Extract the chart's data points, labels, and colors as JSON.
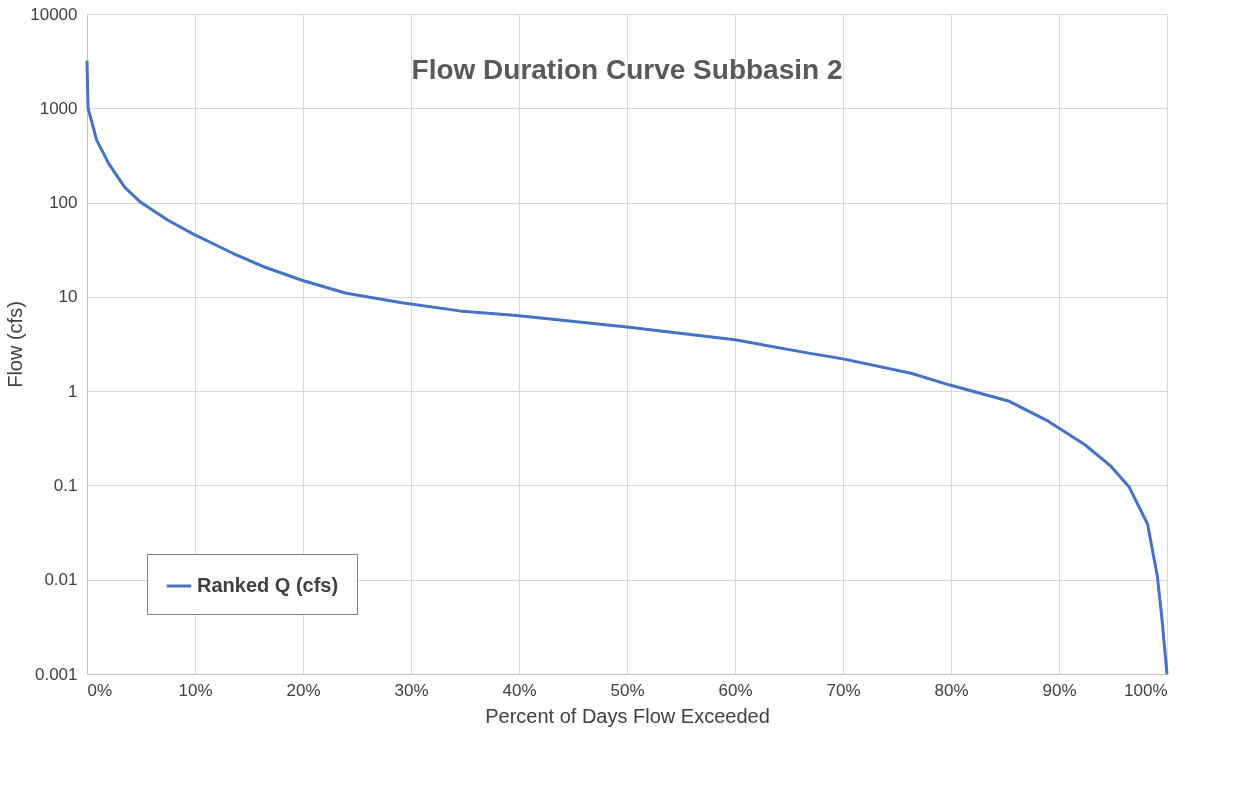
{
  "chart_data": {
    "type": "line",
    "title": "Flow Duration Curve Subbasin 2",
    "xlabel": "Percent of Days Flow Exceeded",
    "ylabel": "Flow (cfs)",
    "x": [
      0,
      0.1,
      0.9,
      2.0,
      3.5,
      5.0,
      7.5,
      9.9,
      13.5,
      16.3,
      19.9,
      23.9,
      29,
      34.5,
      40,
      50,
      60,
      67.1,
      70,
      76.3,
      79.9,
      85.4,
      89,
      92.4,
      94.8,
      96.5,
      98.2,
      99.1,
      99.5,
      100
    ],
    "series": [
      {
        "name": "Ranked Q (cfs)",
        "color": "#4472c4",
        "values": [
          3200,
          1000,
          460,
          260,
          145,
          100,
          65,
          46,
          29,
          21,
          15,
          11,
          8.7,
          7.1,
          6.3,
          4.8,
          3.5,
          2.5,
          2.2,
          1.55,
          1.16,
          0.78,
          0.48,
          0.27,
          0.16,
          0.096,
          0.039,
          0.011,
          0.0042,
          0.001
        ]
      }
    ],
    "xlim": [
      0,
      100
    ],
    "xticks": [
      {
        "value": 0,
        "label": "0%"
      },
      {
        "value": 10,
        "label": "10%"
      },
      {
        "value": 20,
        "label": "20%"
      },
      {
        "value": 30,
        "label": "30%"
      },
      {
        "value": 40,
        "label": "40%"
      },
      {
        "value": 50,
        "label": "50%"
      },
      {
        "value": 60,
        "label": "60%"
      },
      {
        "value": 70,
        "label": "70%"
      },
      {
        "value": 80,
        "label": "80%"
      },
      {
        "value": 90,
        "label": "90%"
      },
      {
        "value": 100,
        "label": "100%"
      }
    ],
    "ylim": [
      0.001,
      10000
    ],
    "yticks": [
      0.001,
      0.01,
      0.1,
      1,
      10,
      100,
      1000,
      10000
    ],
    "log": true,
    "grid": true,
    "legend": "bottom left",
    "marker": "none",
    "line_style": "solid"
  }
}
